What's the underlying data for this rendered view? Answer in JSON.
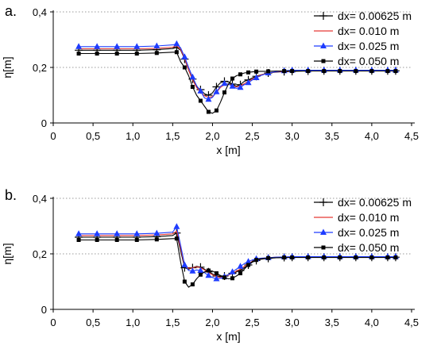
{
  "chart_data": [
    {
      "type": "line",
      "panel_label": "a.",
      "xlabel": "x [m]",
      "ylabel": "η[m]",
      "xlim": [
        0,
        4.5
      ],
      "ylim": [
        0,
        0.4
      ],
      "xticks": [
        0,
        0.5,
        1.0,
        1.5,
        2.0,
        2.5,
        3.0,
        3.5,
        4.0,
        4.5
      ],
      "xtick_labels": [
        "0",
        "0,5",
        "1,0",
        "1,5",
        "2,0",
        "2,5",
        "3,0",
        "3,5",
        "4,0",
        "4,5"
      ],
      "yticks": [
        0,
        0.2,
        0.4
      ],
      "ytick_labels": [
        "0",
        "0,2",
        "0,4"
      ],
      "grid": "horizontal dotted",
      "legend_position": "top-right",
      "series": [
        {
          "name": "dx= 0.00625 m",
          "color": "#000000",
          "marker": "plus",
          "x": [
            0.32,
            0.55,
            0.8,
            1.05,
            1.3,
            1.5,
            1.55,
            1.6,
            1.65,
            1.7,
            1.75,
            1.8,
            1.85,
            1.9,
            1.95,
            2.0,
            2.05,
            2.1,
            2.15,
            2.2,
            2.25,
            2.3,
            2.35,
            2.4,
            2.45,
            2.5,
            2.55,
            2.6,
            2.7,
            2.8,
            2.9,
            3.0,
            3.2,
            3.4,
            3.6,
            3.8,
            4.0,
            4.2,
            4.3
          ],
          "y": [
            0.262,
            0.262,
            0.262,
            0.262,
            0.264,
            0.268,
            0.272,
            0.262,
            0.23,
            0.19,
            0.158,
            0.13,
            0.12,
            0.105,
            0.1,
            0.108,
            0.13,
            0.145,
            0.15,
            0.148,
            0.14,
            0.132,
            0.138,
            0.15,
            0.155,
            0.162,
            0.168,
            0.173,
            0.18,
            0.183,
            0.185,
            0.186,
            0.187,
            0.188,
            0.188,
            0.188,
            0.188,
            0.188,
            0.188
          ]
        },
        {
          "name": "dx= 0.010 m",
          "color": "#e53935",
          "marker": "none",
          "x": [
            0.32,
            0.55,
            0.8,
            1.05,
            1.3,
            1.5,
            1.55,
            1.6,
            1.65,
            1.7,
            1.75,
            1.8,
            1.85,
            1.9,
            1.95,
            2.0,
            2.05,
            2.1,
            2.15,
            2.2,
            2.25,
            2.3,
            2.35,
            2.4,
            2.45,
            2.5,
            2.55,
            2.6,
            2.7,
            2.8,
            2.9,
            3.0,
            3.2,
            3.4,
            3.6,
            3.8,
            4.0,
            4.2,
            4.3
          ],
          "y": [
            0.267,
            0.267,
            0.267,
            0.267,
            0.269,
            0.273,
            0.278,
            0.265,
            0.232,
            0.19,
            0.155,
            0.128,
            0.11,
            0.098,
            0.092,
            0.095,
            0.11,
            0.128,
            0.138,
            0.14,
            0.135,
            0.13,
            0.133,
            0.142,
            0.15,
            0.158,
            0.165,
            0.172,
            0.18,
            0.184,
            0.186,
            0.187,
            0.188,
            0.189,
            0.189,
            0.189,
            0.189,
            0.189,
            0.189
          ]
        },
        {
          "name": "dx= 0.025 m",
          "color": "#1e3cff",
          "marker": "triangle",
          "x": [
            0.32,
            0.55,
            0.8,
            1.05,
            1.3,
            1.5,
            1.55,
            1.6,
            1.65,
            1.7,
            1.75,
            1.8,
            1.85,
            1.9,
            1.95,
            2.0,
            2.05,
            2.1,
            2.15,
            2.2,
            2.25,
            2.3,
            2.35,
            2.4,
            2.45,
            2.5,
            2.55,
            2.6,
            2.7,
            2.8,
            2.9,
            3.0,
            3.2,
            3.4,
            3.6,
            3.8,
            4.0,
            4.2,
            4.3
          ],
          "y": [
            0.275,
            0.275,
            0.275,
            0.275,
            0.277,
            0.281,
            0.285,
            0.27,
            0.238,
            0.2,
            0.165,
            0.135,
            0.115,
            0.09,
            0.085,
            0.092,
            0.112,
            0.132,
            0.142,
            0.14,
            0.132,
            0.125,
            0.128,
            0.138,
            0.145,
            0.155,
            0.163,
            0.17,
            0.18,
            0.185,
            0.188,
            0.19,
            0.19,
            0.19,
            0.19,
            0.19,
            0.19,
            0.19,
            0.19
          ]
        },
        {
          "name": "dx= 0.050 m",
          "color": "#000000",
          "marker": "square",
          "x": [
            0.32,
            0.55,
            0.8,
            1.05,
            1.3,
            1.5,
            1.55,
            1.6,
            1.65,
            1.7,
            1.75,
            1.8,
            1.85,
            1.9,
            1.95,
            2.0,
            2.05,
            2.1,
            2.15,
            2.2,
            2.25,
            2.3,
            2.35,
            2.4,
            2.45,
            2.5,
            2.55,
            2.6,
            2.7,
            2.8,
            2.9,
            3.0,
            3.2,
            3.4,
            3.6,
            3.8,
            4.0,
            4.2,
            4.3
          ],
          "y": [
            0.25,
            0.25,
            0.25,
            0.25,
            0.252,
            0.255,
            0.255,
            0.22,
            0.2,
            0.17,
            0.13,
            0.1,
            0.08,
            0.06,
            0.04,
            0.035,
            0.045,
            0.075,
            0.11,
            0.14,
            0.16,
            0.17,
            0.175,
            0.18,
            0.182,
            0.184,
            0.185,
            0.186,
            0.186,
            0.187,
            0.187,
            0.187,
            0.187,
            0.187,
            0.187,
            0.187,
            0.187,
            0.187,
            0.187
          ]
        }
      ]
    },
    {
      "type": "line",
      "panel_label": "b.",
      "xlabel": "x [m]",
      "ylabel": "η[m]",
      "xlim": [
        0,
        4.5
      ],
      "ylim": [
        0,
        0.4
      ],
      "xticks": [
        0,
        0.5,
        1.0,
        1.5,
        2.0,
        2.5,
        3.0,
        3.5,
        4.0,
        4.5
      ],
      "xtick_labels": [
        "0",
        "0,5",
        "1,0",
        "1,5",
        "2,0",
        "2,5",
        "3,0",
        "3,5",
        "4,0",
        "4,5"
      ],
      "yticks": [
        0,
        0.2,
        0.4
      ],
      "ytick_labels": [
        "0",
        "0,2",
        "0,4"
      ],
      "grid": "horizontal dotted",
      "legend_position": "top-right",
      "series": [
        {
          "name": "dx= 0.00625 m",
          "color": "#000000",
          "marker": "plus",
          "x": [
            0.32,
            0.55,
            0.8,
            1.05,
            1.3,
            1.5,
            1.55,
            1.6,
            1.65,
            1.7,
            1.75,
            1.8,
            1.85,
            1.9,
            1.95,
            2.0,
            2.05,
            2.1,
            2.15,
            2.2,
            2.25,
            2.3,
            2.35,
            2.4,
            2.45,
            2.5,
            2.55,
            2.6,
            2.7,
            2.8,
            2.9,
            3.0,
            3.2,
            3.4,
            3.6,
            3.8,
            4.0,
            4.2,
            4.3
          ],
          "y": [
            0.26,
            0.26,
            0.26,
            0.26,
            0.262,
            0.266,
            0.275,
            0.21,
            0.15,
            0.145,
            0.15,
            0.155,
            0.152,
            0.145,
            0.135,
            0.128,
            0.12,
            0.118,
            0.12,
            0.125,
            0.13,
            0.135,
            0.14,
            0.15,
            0.16,
            0.17,
            0.176,
            0.18,
            0.184,
            0.186,
            0.187,
            0.188,
            0.188,
            0.188,
            0.188,
            0.188,
            0.188,
            0.188,
            0.188
          ]
        },
        {
          "name": "dx= 0.010 m",
          "color": "#e53935",
          "marker": "none",
          "x": [
            0.32,
            0.55,
            0.8,
            1.05,
            1.3,
            1.5,
            1.55,
            1.6,
            1.65,
            1.7,
            1.75,
            1.8,
            1.85,
            1.9,
            1.95,
            2.0,
            2.05,
            2.1,
            2.15,
            2.2,
            2.25,
            2.3,
            2.35,
            2.4,
            2.45,
            2.5,
            2.55,
            2.6,
            2.7,
            2.8,
            2.9,
            3.0,
            3.2,
            3.4,
            3.6,
            3.8,
            4.0,
            4.2,
            4.3
          ],
          "y": [
            0.266,
            0.266,
            0.266,
            0.266,
            0.268,
            0.272,
            0.282,
            0.22,
            0.155,
            0.148,
            0.15,
            0.153,
            0.15,
            0.142,
            0.132,
            0.125,
            0.118,
            0.115,
            0.118,
            0.123,
            0.13,
            0.138,
            0.145,
            0.155,
            0.165,
            0.173,
            0.178,
            0.182,
            0.186,
            0.188,
            0.189,
            0.189,
            0.189,
            0.189,
            0.189,
            0.189,
            0.189,
            0.189,
            0.189
          ]
        },
        {
          "name": "dx= 0.025 m",
          "color": "#1e3cff",
          "marker": "triangle",
          "x": [
            0.32,
            0.55,
            0.8,
            1.05,
            1.3,
            1.5,
            1.55,
            1.6,
            1.65,
            1.7,
            1.75,
            1.8,
            1.85,
            1.9,
            1.95,
            2.0,
            2.05,
            2.1,
            2.15,
            2.2,
            2.25,
            2.3,
            2.35,
            2.4,
            2.45,
            2.5,
            2.55,
            2.6,
            2.7,
            2.8,
            2.9,
            3.0,
            3.2,
            3.4,
            3.6,
            3.8,
            4.0,
            4.2,
            4.3
          ],
          "y": [
            0.272,
            0.272,
            0.272,
            0.272,
            0.274,
            0.278,
            0.298,
            0.23,
            0.16,
            0.14,
            0.138,
            0.142,
            0.14,
            0.132,
            0.122,
            0.115,
            0.11,
            0.112,
            0.118,
            0.125,
            0.135,
            0.145,
            0.155,
            0.165,
            0.172,
            0.178,
            0.182,
            0.184,
            0.186,
            0.188,
            0.189,
            0.19,
            0.19,
            0.19,
            0.19,
            0.19,
            0.19,
            0.19,
            0.19
          ]
        },
        {
          "name": "dx= 0.050 m",
          "color": "#000000",
          "marker": "square",
          "x": [
            0.32,
            0.55,
            0.8,
            1.05,
            1.3,
            1.5,
            1.55,
            1.6,
            1.65,
            1.7,
            1.75,
            1.8,
            1.85,
            1.9,
            1.95,
            2.0,
            2.05,
            2.1,
            2.15,
            2.2,
            2.25,
            2.3,
            2.35,
            2.4,
            2.45,
            2.5,
            2.55,
            2.6,
            2.7,
            2.8,
            2.9,
            3.0,
            3.2,
            3.4,
            3.6,
            3.8,
            4.0,
            4.2,
            4.3
          ],
          "y": [
            0.25,
            0.25,
            0.25,
            0.25,
            0.252,
            0.255,
            0.255,
            0.17,
            0.1,
            0.08,
            0.09,
            0.11,
            0.125,
            0.135,
            0.14,
            0.138,
            0.13,
            0.122,
            0.115,
            0.11,
            0.112,
            0.12,
            0.13,
            0.145,
            0.16,
            0.172,
            0.178,
            0.182,
            0.185,
            0.186,
            0.187,
            0.187,
            0.187,
            0.187,
            0.187,
            0.187,
            0.187,
            0.187,
            0.187
          ]
        }
      ]
    }
  ]
}
